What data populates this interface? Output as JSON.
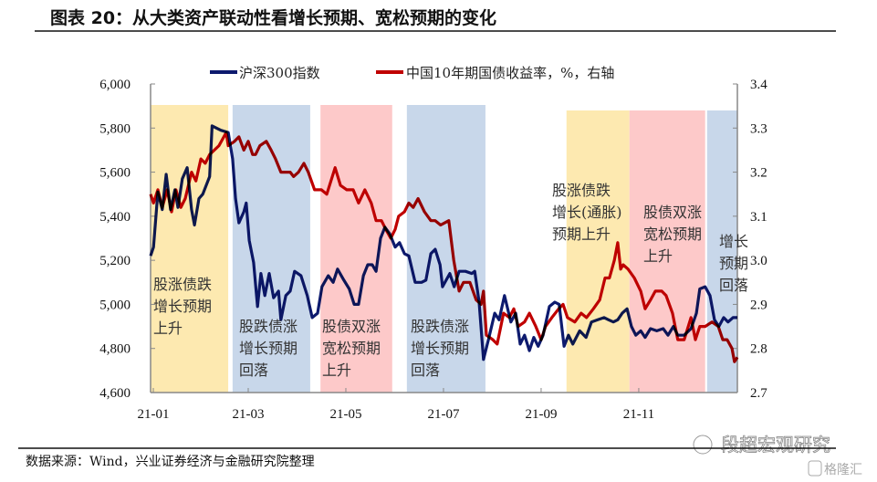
{
  "title": "图表 20：从大类资产联动性看增长预期、宽松预期的变化",
  "source": "数据来源：Wind，兴业证券经济与金融研究院整理",
  "watermark": "段超宏观研究",
  "logo_text": "格隆汇",
  "chart_data": {
    "type": "line",
    "title": "图表 20：从大类资产联动性看增长预期、宽松预期的变化",
    "x_unit": "months since 2021-01",
    "xlim": [
      0,
      12.02
    ],
    "x_ticks": [
      {
        "m": 0,
        "label": "21-01"
      },
      {
        "m": 2,
        "label": "21-03"
      },
      {
        "m": 4,
        "label": "21-05"
      },
      {
        "m": 6,
        "label": "21-07"
      },
      {
        "m": 8,
        "label": "21-09"
      },
      {
        "m": 10,
        "label": "21-11"
      }
    ],
    "y_left": {
      "lim": [
        4600,
        6000
      ],
      "ticks": [
        4600,
        4800,
        5000,
        5200,
        5400,
        5600,
        5800,
        6000
      ],
      "labels": [
        "4,600",
        "4,800",
        "5,000",
        "5,200",
        "5,400",
        "5,600",
        "5,800",
        "6,000"
      ]
    },
    "y_right": {
      "lim": [
        2.7,
        3.4
      ],
      "ticks": [
        2.7,
        2.8,
        2.9,
        3.0,
        3.1,
        3.2,
        3.3,
        3.4
      ],
      "labels": [
        "2.7",
        "2.8",
        "2.9",
        "3.0",
        "3.1",
        "3.2",
        "3.3",
        "3.4"
      ]
    },
    "legend_position": "top",
    "series": [
      {
        "name": "沪深300指数",
        "axis": "left",
        "color": "#0d1a6e",
        "x": [
          0,
          0.06,
          0.15,
          0.24,
          0.32,
          0.41,
          0.5,
          0.56,
          0.65,
          0.75,
          0.84,
          0.9,
          0.99,
          1.07,
          1.21,
          1.26,
          1.44,
          1.59,
          1.68,
          1.74,
          1.81,
          1.91,
          1.96,
          2.02,
          2.11,
          2.19,
          2.26,
          2.34,
          2.43,
          2.52,
          2.62,
          2.67,
          2.77,
          2.86,
          2.95,
          3.08,
          3.21,
          3.31,
          3.42,
          3.51,
          3.64,
          3.74,
          3.83,
          3.96,
          4.07,
          4.17,
          4.26,
          4.36,
          4.45,
          4.54,
          4.62,
          4.71,
          4.8,
          4.9,
          5.01,
          5.1,
          5.2,
          5.29,
          5.42,
          5.55,
          5.64,
          5.74,
          5.83,
          5.93,
          5.98,
          6.13,
          6.22,
          6.32,
          6.45,
          6.58,
          6.64,
          6.73,
          6.82,
          6.92,
          7.05,
          7.14,
          7.25,
          7.38,
          7.48,
          7.57,
          7.66,
          7.76,
          7.85,
          7.94,
          8.04,
          8.17,
          8.28,
          8.37,
          8.47,
          8.56,
          8.65,
          8.79,
          8.92,
          9.03,
          9.16,
          9.29,
          9.38,
          9.48,
          9.57,
          9.66,
          9.76,
          9.85,
          9.94,
          10.04,
          10.13,
          10.24,
          10.37,
          10.5,
          10.6,
          10.71,
          10.8,
          10.93,
          11.07,
          11.18,
          11.25,
          11.36,
          11.46,
          11.55,
          11.64,
          11.74,
          11.83,
          11.93,
          12.02
        ],
        "y": [
          5220,
          5260,
          5510,
          5430,
          5590,
          5430,
          5520,
          5440,
          5570,
          5620,
          5430,
          5360,
          5480,
          5500,
          5580,
          5810,
          5790,
          5780,
          5660,
          5480,
          5370,
          5420,
          5460,
          5290,
          5190,
          4990,
          5140,
          5040,
          5140,
          5030,
          5060,
          4930,
          5040,
          5060,
          5150,
          5130,
          5040,
          4940,
          4960,
          5080,
          5130,
          5100,
          5160,
          5110,
          5070,
          5000,
          5000,
          5130,
          5180,
          5180,
          5150,
          5300,
          5350,
          5320,
          5260,
          5280,
          5230,
          5220,
          5100,
          5100,
          5110,
          5230,
          5250,
          5180,
          5080,
          5140,
          5080,
          5150,
          5150,
          5140,
          5150,
          5010,
          4750,
          4840,
          4960,
          4930,
          5040,
          4920,
          4960,
          4820,
          4860,
          4790,
          4850,
          4810,
          4860,
          4990,
          5010,
          5000,
          4810,
          4860,
          4820,
          4880,
          4850,
          4920,
          4930,
          4940,
          4930,
          4920,
          4930,
          4960,
          4980,
          4900,
          4860,
          4880,
          4850,
          4890,
          4880,
          4890,
          4860,
          4900,
          4860,
          4860,
          4890,
          4960,
          5070,
          5080,
          5040,
          4930,
          4900,
          4940,
          4920,
          4940,
          4940
        ]
      },
      {
        "name": "中国10年期国债收益率，%，右轴",
        "axis": "right",
        "color": "#c00000",
        "x": [
          0,
          0.06,
          0.15,
          0.24,
          0.34,
          0.43,
          0.52,
          0.62,
          0.71,
          0.84,
          0.93,
          1.03,
          1.12,
          1.21,
          1.4,
          1.55,
          1.59,
          1.72,
          1.81,
          1.91,
          2.0,
          2.09,
          2.15,
          2.24,
          2.37,
          2.47,
          2.56,
          2.67,
          2.77,
          2.86,
          2.93,
          3.03,
          3.14,
          3.23,
          3.36,
          3.5,
          3.61,
          3.78,
          3.89,
          4.02,
          4.15,
          4.26,
          4.39,
          4.52,
          4.62,
          4.73,
          4.82,
          4.92,
          5.01,
          5.08,
          5.2,
          5.29,
          5.38,
          5.48,
          5.61,
          5.74,
          5.83,
          5.94,
          6.11,
          6.21,
          6.32,
          6.41,
          6.54,
          6.67,
          6.77,
          6.82,
          6.88,
          7.01,
          7.1,
          7.23,
          7.35,
          7.44,
          7.53,
          7.66,
          7.76,
          7.89,
          8.0,
          8.09,
          8.22,
          8.36,
          8.45,
          8.54,
          8.69,
          8.82,
          8.93,
          9.07,
          9.2,
          9.31,
          9.4,
          9.5,
          9.57,
          9.63,
          9.68,
          9.78,
          9.91,
          10.04,
          10.13,
          10.24,
          10.34,
          10.47,
          10.56,
          10.69,
          10.8,
          10.93,
          11.07,
          11.16,
          11.25,
          11.36,
          11.5,
          11.63,
          11.72,
          11.81,
          11.91,
          11.96,
          12.02
        ],
        "y": [
          3.15,
          3.13,
          3.16,
          3.12,
          3.16,
          3.11,
          3.16,
          3.12,
          3.14,
          3.2,
          3.18,
          3.23,
          3.22,
          3.24,
          3.26,
          3.29,
          3.26,
          3.27,
          3.28,
          3.25,
          3.27,
          3.24,
          3.24,
          3.26,
          3.27,
          3.25,
          3.23,
          3.2,
          3.2,
          3.2,
          3.19,
          3.2,
          3.22,
          3.2,
          3.16,
          3.16,
          3.15,
          3.21,
          3.17,
          3.16,
          3.16,
          3.13,
          3.16,
          3.13,
          3.09,
          3.09,
          3.07,
          3.05,
          3.07,
          3.1,
          3.11,
          3.13,
          3.12,
          3.14,
          3.11,
          3.09,
          3.09,
          3.08,
          3.09,
          3.0,
          2.93,
          2.95,
          2.95,
          2.91,
          2.9,
          2.93,
          2.83,
          2.82,
          2.81,
          2.88,
          2.87,
          2.89,
          2.85,
          2.86,
          2.88,
          2.85,
          2.82,
          2.85,
          2.87,
          2.89,
          2.9,
          2.87,
          2.86,
          2.88,
          2.87,
          2.89,
          2.91,
          2.96,
          2.96,
          3.0,
          3.04,
          2.98,
          2.99,
          2.98,
          2.96,
          2.93,
          2.89,
          2.91,
          2.93,
          2.93,
          2.92,
          2.88,
          2.82,
          2.82,
          2.87,
          2.82,
          2.85,
          2.85,
          2.86,
          2.85,
          2.82,
          2.82,
          2.8,
          2.77,
          2.78
        ]
      }
    ],
    "regions": [
      {
        "from": 0,
        "to": 1.59,
        "color": "#fde9b0",
        "label": [
          "股涨债跌",
          "增长预期",
          "上升"
        ]
      },
      {
        "from": 1.68,
        "to": 3.27,
        "color": "#c8d7ea",
        "label": [
          "股跌债涨",
          "增长预期",
          "回落"
        ]
      },
      {
        "from": 3.48,
        "to": 4.95,
        "color": "#fdc9c9",
        "label": [
          "股债双涨",
          "宽松预期",
          "上升"
        ]
      },
      {
        "from": 5.25,
        "to": 6.86,
        "color": "#c8d7ea",
        "label": [
          "股跌债涨",
          "增长预期",
          "回落"
        ]
      },
      {
        "from": 8.52,
        "to": 9.81,
        "color": "#fde9b0",
        "label": [
          "股涨债跌",
          "增长(通胀)",
          "预期上升"
        ]
      },
      {
        "from": 9.81,
        "to": 11.36,
        "color": "#fdc9c9",
        "label": [
          "股债双涨",
          "宽松预期",
          "上升"
        ]
      },
      {
        "from": 11.4,
        "to": 12.02,
        "color": "#c8d7ea",
        "label": [
          "增长",
          "预期",
          "回落"
        ]
      }
    ]
  }
}
